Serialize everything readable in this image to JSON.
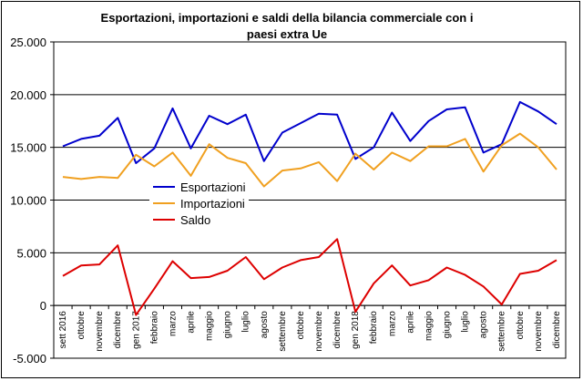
{
  "chart_data": {
    "type": "line",
    "title": [
      "Esportazioni, importazioni e saldi della bilancia commerciale con i",
      "paesi extra Ue"
    ],
    "categories": [
      "sett 2016",
      "ottobre",
      "novembre",
      "dicembre",
      "gen 2017",
      "febbraio",
      "marzo",
      "aprile",
      "maggio",
      "giugno",
      "luglio",
      "agosto",
      "settembre",
      "ottobre",
      "novembre",
      "dicembre",
      "gen 2018",
      "febbraio",
      "marzo",
      "aprile",
      "maggio",
      "giugno",
      "luglio",
      "agosto",
      "settembre",
      "ottobre",
      "novembre",
      "dicembre"
    ],
    "y_ticks": [
      "25.000",
      "20.000",
      "15.000",
      "10.000",
      "5.000",
      "0",
      "-5.000"
    ],
    "ylim": [
      -5000,
      25000
    ],
    "grid": true,
    "legend_position": "center-left",
    "series": [
      {
        "name": "Esportazioni",
        "color": "#0000cc",
        "values": [
          15100,
          15800,
          16100,
          17800,
          13500,
          14900,
          18700,
          14900,
          18000,
          17200,
          18100,
          13700,
          16400,
          17300,
          18200,
          18100,
          13900,
          15000,
          18300,
          15600,
          17500,
          18600,
          18800,
          14500,
          15300,
          19300,
          18400,
          17200
        ]
      },
      {
        "name": "Importazioni",
        "color": "#f0a020",
        "values": [
          12200,
          12000,
          12200,
          12100,
          14300,
          13200,
          14500,
          12300,
          15300,
          14000,
          13500,
          11300,
          12800,
          13000,
          13600,
          11800,
          14400,
          12900,
          14500,
          13700,
          15100,
          15100,
          15800,
          12700,
          15200,
          16300,
          15000,
          12900
        ]
      },
      {
        "name": "Saldo",
        "color": "#dd0000",
        "values": [
          2800,
          3800,
          3900,
          5700,
          -900,
          1600,
          4200,
          2600,
          2700,
          3300,
          4600,
          2500,
          3600,
          4300,
          4600,
          6300,
          -600,
          2100,
          3800,
          1900,
          2400,
          3600,
          2900,
          1800,
          100,
          3000,
          3300,
          4300
        ]
      }
    ]
  }
}
